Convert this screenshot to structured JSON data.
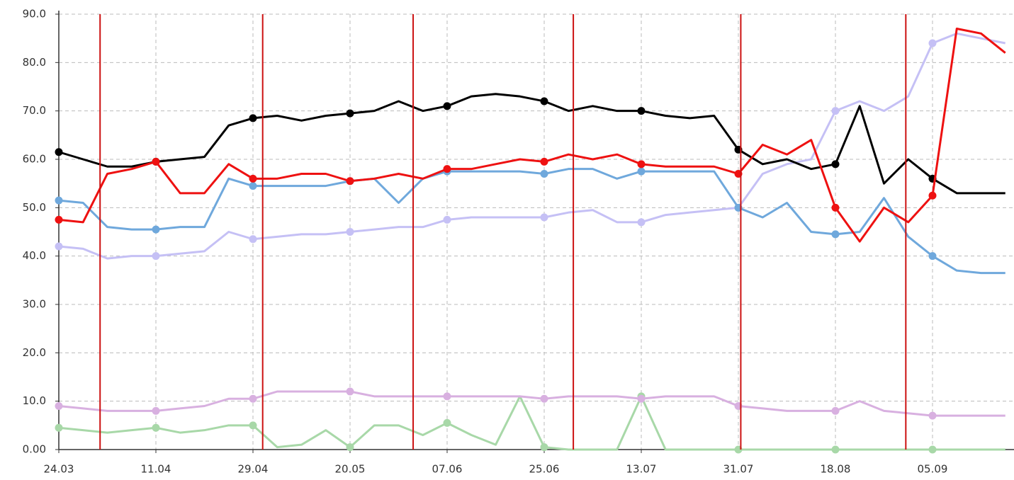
{
  "chart_data": {
    "type": "line",
    "categories": [
      "24.03",
      null,
      null,
      null,
      "11.04",
      null,
      null,
      null,
      "29.04",
      null,
      null,
      null,
      "20.05",
      null,
      null,
      null,
      "07.06",
      null,
      null,
      null,
      "25.06",
      null,
      null,
      null,
      "13.07",
      null,
      null,
      null,
      "31.07",
      null,
      null,
      null,
      "18.08",
      null,
      null,
      null,
      "05.09",
      null,
      null,
      null
    ],
    "series": [
      {
        "color": "#a8d8a8",
        "values": [
          4.5,
          4,
          3.5,
          4,
          4.5,
          3.5,
          4,
          5,
          5,
          0.5,
          1,
          4,
          0.5,
          5,
          5,
          3,
          5.5,
          3,
          1,
          11,
          0.5,
          0,
          0,
          0,
          11,
          0,
          0,
          0,
          0,
          0,
          0,
          0,
          0,
          0,
          0,
          0,
          0,
          0,
          0,
          0
        ]
      },
      {
        "color": "#d8b0e0",
        "values": [
          9,
          8.5,
          8,
          8,
          8,
          8.5,
          9,
          10.5,
          10.5,
          12,
          12,
          12,
          12,
          11,
          11,
          11,
          11,
          11,
          11,
          11,
          10.5,
          11,
          11,
          11,
          10.5,
          11,
          11,
          11,
          9,
          8.5,
          8,
          8,
          8,
          10,
          8,
          7.5,
          7,
          7,
          7,
          7
        ]
      },
      {
        "color": "#c5c0f5",
        "values": [
          42,
          41.5,
          39.5,
          40,
          40,
          40.5,
          41,
          45,
          43.5,
          44,
          44.5,
          44.5,
          45,
          45.5,
          46,
          46,
          47.5,
          48,
          48,
          48,
          48,
          49,
          49.5,
          47,
          47,
          48.5,
          49,
          49.5,
          50,
          57,
          59,
          60,
          70,
          72,
          70,
          73,
          84,
          86,
          85,
          84
        ]
      },
      {
        "color": "#6fa8dc",
        "values": [
          51.5,
          51,
          46,
          45.5,
          45.5,
          46,
          46,
          56,
          54.5,
          54.5,
          54.5,
          54.5,
          55.5,
          56,
          51,
          56,
          57.5,
          57.5,
          57.5,
          57.5,
          57,
          58,
          58,
          56,
          57.5,
          57.5,
          57.5,
          57.5,
          50,
          48,
          51,
          45,
          44.5,
          45,
          52,
          44,
          40,
          37,
          36.5,
          36.5
        ]
      },
      {
        "color": "#000000",
        "values": [
          61.5,
          60,
          58.5,
          58.5,
          59.5,
          60,
          60.5,
          67,
          68.5,
          69,
          68,
          69,
          69.5,
          70,
          72,
          70,
          71,
          73,
          73.5,
          73,
          72,
          70,
          71,
          70,
          70,
          69,
          68.5,
          69,
          62,
          59,
          60,
          58,
          59,
          71,
          55,
          60,
          56,
          53,
          53,
          53
        ]
      },
      {
        "color": "#ee1111",
        "values": [
          47.5,
          47,
          57,
          58,
          59.5,
          53,
          53,
          59,
          56,
          56,
          57,
          57,
          55.5,
          56,
          57,
          56,
          58,
          58,
          59,
          60,
          59.5,
          61,
          60,
          61,
          59,
          58.5,
          58.5,
          58.5,
          57,
          63,
          61,
          64,
          50,
          43,
          50,
          47,
          52.5,
          87,
          86,
          82
        ]
      }
    ],
    "vlines": [
      1.7,
      8.4,
      14.6,
      21.2,
      28.1,
      34.9
    ],
    "vline_color": "#cc1111",
    "ylim": [
      0,
      90
    ],
    "yticks": [
      {
        "value": 0,
        "label": "0.00"
      },
      {
        "value": 10,
        "label": "10.0"
      },
      {
        "value": 20,
        "label": "20.0"
      },
      {
        "value": 30,
        "label": "30.0"
      },
      {
        "value": 40,
        "label": "40.0"
      },
      {
        "value": 50,
        "label": "50.0"
      },
      {
        "value": 60,
        "label": "60.0"
      },
      {
        "value": 70,
        "label": "70.0"
      },
      {
        "value": 80,
        "label": "80.0"
      },
      {
        "value": 90,
        "label": "90.0"
      }
    ],
    "grid": true
  }
}
